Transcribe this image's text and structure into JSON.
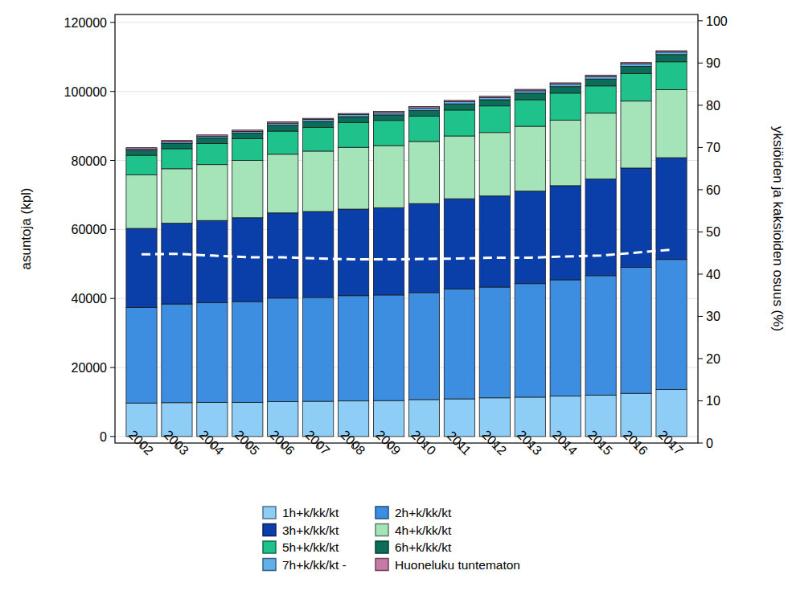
{
  "chart_data": {
    "type": "bar",
    "stacked": true,
    "grid": true,
    "legend": "bottom",
    "y_label": "asuntoja (kpl)",
    "y2_label": "yksiöiden ja kaksioiden osuus (%)",
    "categories": [
      "2002",
      "2003",
      "2004",
      "2005",
      "2006",
      "2007",
      "2008",
      "2009",
      "2010",
      "2011",
      "2012",
      "2013",
      "2014",
      "2015",
      "2016",
      "2017"
    ],
    "ylim": [
      -1900,
      122300
    ],
    "yticks": [
      0,
      20000,
      40000,
      60000,
      80000,
      100000,
      120000
    ],
    "y2lim": [
      0,
      101.5
    ],
    "y2ticks": [
      0,
      10,
      20,
      30,
      40,
      50,
      60,
      70,
      80,
      90,
      100
    ],
    "series": [
      {
        "name": "1h+k/kk/kt",
        "type": "bar",
        "color": "#8ecdf5",
        "values": [
          9700,
          9800,
          9900,
          9900,
          10100,
          10200,
          10300,
          10400,
          10700,
          10900,
          11200,
          11400,
          11700,
          12000,
          12500,
          13600
        ]
      },
      {
        "name": "2h+k/kk/kt",
        "type": "bar",
        "color": "#3d8de0",
        "values": [
          27700,
          28600,
          28900,
          29200,
          30000,
          30100,
          30500,
          30600,
          31000,
          31800,
          32100,
          32900,
          33700,
          34600,
          36500,
          37700
        ]
      },
      {
        "name": "3h+k/kk/kt",
        "type": "bar",
        "color": "#0a3ea8",
        "values": [
          22900,
          23400,
          23800,
          24300,
          24700,
          24900,
          25100,
          25300,
          25800,
          26200,
          26400,
          26800,
          27300,
          28000,
          28800,
          29500
        ]
      },
      {
        "name": "4h+k/kk/kt",
        "type": "bar",
        "color": "#a5e3b9",
        "values": [
          15500,
          15800,
          16200,
          16600,
          17000,
          17500,
          17900,
          18000,
          18000,
          18200,
          18400,
          18800,
          19000,
          19100,
          19400,
          19700
        ]
      },
      {
        "name": "5h+k/kk/kt",
        "type": "bar",
        "color": "#1ec28a",
        "values": [
          5700,
          5800,
          6100,
          6300,
          6700,
          6900,
          7200,
          7300,
          7300,
          7500,
          7700,
          7700,
          7800,
          7900,
          8000,
          8100
        ]
      },
      {
        "name": "6h+k/kk/kt",
        "type": "bar",
        "color": "#0b6e58",
        "values": [
          1400,
          1500,
          1600,
          1600,
          1700,
          1700,
          1700,
          1600,
          1700,
          1800,
          1800,
          1900,
          1900,
          2000,
          2100,
          2100
        ]
      },
      {
        "name": "7h+k/kk/kt -",
        "type": "bar",
        "color": "#62b0ea",
        "values": [
          400,
          500,
          500,
          500,
          600,
          600,
          600,
          600,
          700,
          600,
          600,
          700,
          700,
          700,
          700,
          700
        ]
      },
      {
        "name": "Huoneluku tuntematon",
        "type": "bar",
        "color": "#c87aa6",
        "values": [
          400,
          400,
          400,
          400,
          400,
          300,
          300,
          400,
          400,
          400,
          400,
          400,
          400,
          400,
          400,
          400
        ]
      },
      {
        "type": "line",
        "axis": "y2",
        "line_style": "dashed",
        "color": "#ffffff",
        "values": [
          44.7,
          44.8,
          44.4,
          44.0,
          44.0,
          43.7,
          43.5,
          43.5,
          43.6,
          43.7,
          43.9,
          43.9,
          44.2,
          44.4,
          45.1,
          45.8
        ]
      }
    ]
  }
}
